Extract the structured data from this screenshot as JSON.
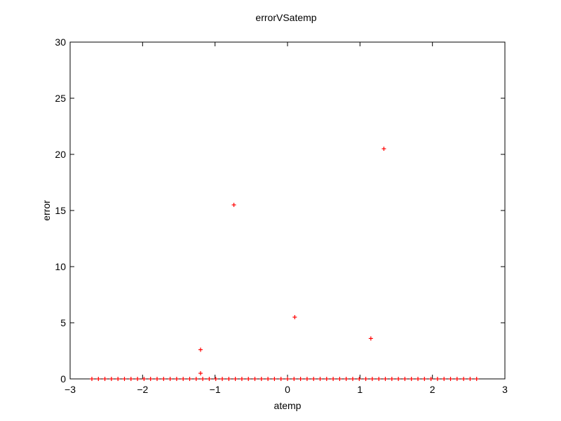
{
  "chart_data": {
    "type": "scatter",
    "title": "errorVSatemp",
    "xlabel": "atemp",
    "ylabel": "error",
    "xlim": [
      -3,
      3
    ],
    "ylim": [
      0,
      30
    ],
    "xticks": [
      -3,
      -2,
      -1,
      0,
      1,
      2,
      3
    ],
    "xtick_labels": [
      "−3",
      "−2",
      "−1",
      "0",
      "1",
      "2",
      "3"
    ],
    "yticks": [
      0,
      5,
      10,
      15,
      20,
      25,
      30
    ],
    "ytick_labels": [
      "0",
      "5",
      "10",
      "15",
      "20",
      "25",
      "30"
    ],
    "grid": false,
    "legend": "none",
    "marker": "+",
    "marker_color": "#ff0000",
    "points": [
      {
        "x": -2.7,
        "y": 0
      },
      {
        "x": -2.61,
        "y": 0
      },
      {
        "x": -2.52,
        "y": 0
      },
      {
        "x": -2.43,
        "y": 0
      },
      {
        "x": -2.34,
        "y": 0
      },
      {
        "x": -2.25,
        "y": 0
      },
      {
        "x": -2.16,
        "y": 0
      },
      {
        "x": -2.07,
        "y": 0
      },
      {
        "x": -1.98,
        "y": 0
      },
      {
        "x": -1.89,
        "y": 0
      },
      {
        "x": -1.8,
        "y": 0
      },
      {
        "x": -1.71,
        "y": 0
      },
      {
        "x": -1.62,
        "y": 0
      },
      {
        "x": -1.53,
        "y": 0
      },
      {
        "x": -1.44,
        "y": 0
      },
      {
        "x": -1.35,
        "y": 0
      },
      {
        "x": -1.26,
        "y": 0
      },
      {
        "x": -1.17,
        "y": 0
      },
      {
        "x": -1.08,
        "y": 0
      },
      {
        "x": -0.99,
        "y": 0
      },
      {
        "x": -0.9,
        "y": 0
      },
      {
        "x": -0.81,
        "y": 0
      },
      {
        "x": -0.72,
        "y": 0
      },
      {
        "x": -0.63,
        "y": 0
      },
      {
        "x": -0.54,
        "y": 0
      },
      {
        "x": -0.45,
        "y": 0
      },
      {
        "x": -0.36,
        "y": 0
      },
      {
        "x": -0.27,
        "y": 0
      },
      {
        "x": -0.18,
        "y": 0
      },
      {
        "x": -0.09,
        "y": 0
      },
      {
        "x": 0.0,
        "y": 0
      },
      {
        "x": 0.09,
        "y": 0
      },
      {
        "x": 0.18,
        "y": 0
      },
      {
        "x": 0.27,
        "y": 0
      },
      {
        "x": 0.36,
        "y": 0
      },
      {
        "x": 0.45,
        "y": 0
      },
      {
        "x": 0.54,
        "y": 0
      },
      {
        "x": 0.63,
        "y": 0
      },
      {
        "x": 0.72,
        "y": 0
      },
      {
        "x": 0.81,
        "y": 0
      },
      {
        "x": 0.9,
        "y": 0
      },
      {
        "x": 0.99,
        "y": 0
      },
      {
        "x": 1.08,
        "y": 0
      },
      {
        "x": 1.17,
        "y": 0
      },
      {
        "x": 1.26,
        "y": 0
      },
      {
        "x": 1.35,
        "y": 0
      },
      {
        "x": 1.44,
        "y": 0
      },
      {
        "x": 1.53,
        "y": 0
      },
      {
        "x": 1.62,
        "y": 0
      },
      {
        "x": 1.71,
        "y": 0
      },
      {
        "x": 1.8,
        "y": 0
      },
      {
        "x": 1.89,
        "y": 0
      },
      {
        "x": 1.98,
        "y": 0
      },
      {
        "x": 2.07,
        "y": 0
      },
      {
        "x": 2.16,
        "y": 0
      },
      {
        "x": 2.25,
        "y": 0
      },
      {
        "x": 2.34,
        "y": 0
      },
      {
        "x": 2.43,
        "y": 0
      },
      {
        "x": 2.52,
        "y": 0
      },
      {
        "x": 2.61,
        "y": 0
      },
      {
        "x": -1.2,
        "y": 0.5
      },
      {
        "x": -1.2,
        "y": 2.6
      },
      {
        "x": -0.74,
        "y": 15.5
      },
      {
        "x": 0.1,
        "y": 5.5
      },
      {
        "x": 1.15,
        "y": 3.6
      },
      {
        "x": 1.33,
        "y": 20.5
      }
    ]
  }
}
